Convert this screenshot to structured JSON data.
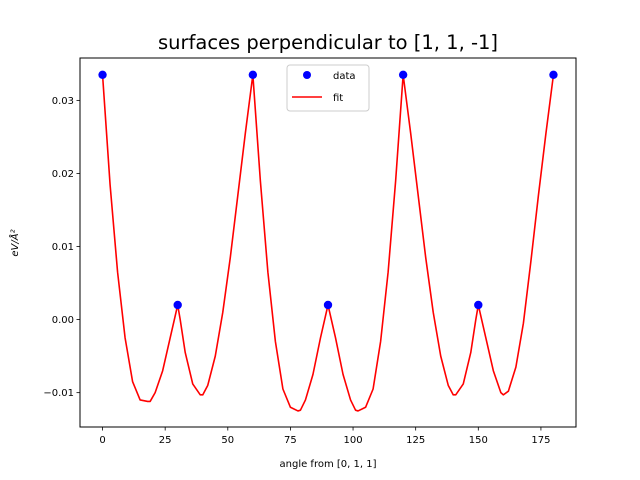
{
  "chart_data": {
    "type": "scatter",
    "title": "surfaces perpendicular to [1, 1, -1]",
    "xlabel": "angle from [0, 1, 1]",
    "ylabel": "eV/Å²",
    "xlim": [
      -9,
      189
    ],
    "ylim": [
      -0.0147,
      0.0358
    ],
    "x_ticks": [
      0,
      25,
      50,
      75,
      100,
      125,
      150,
      175
    ],
    "x_tick_labels": [
      "0",
      "25",
      "50",
      "75",
      "100",
      "125",
      "150",
      "175"
    ],
    "y_ticks": [
      -0.01,
      0.0,
      0.01,
      0.02,
      0.03
    ],
    "y_tick_labels": [
      "−0.01",
      "0.00",
      "0.01",
      "0.02",
      "0.03"
    ],
    "grid": false,
    "legend_position": "upper center",
    "series": [
      {
        "name": "data",
        "kind": "markers",
        "color": "#0000ff",
        "x": [
          0,
          30,
          60,
          90,
          120,
          150,
          180
        ],
        "y": [
          0.0335,
          0.002,
          0.0335,
          0.002,
          0.0335,
          0.002,
          0.0335
        ]
      },
      {
        "name": "fit",
        "kind": "line",
        "color": "#ff0000",
        "x": [
          0,
          3,
          6,
          9,
          12,
          15,
          18,
          19,
          21,
          24,
          27,
          29,
          30,
          31,
          33,
          36,
          39,
          40,
          42,
          45,
          48,
          51,
          54,
          57,
          60,
          63,
          66,
          69,
          72,
          75,
          78,
          79,
          81,
          84,
          87,
          89,
          90,
          91,
          93,
          96,
          99,
          101,
          102,
          105,
          108,
          111,
          114,
          117,
          120,
          123,
          126,
          129,
          132,
          135,
          138,
          140,
          141,
          144,
          147,
          149,
          150,
          151,
          153,
          156,
          159,
          160,
          162,
          165,
          168,
          171,
          174,
          177,
          180
        ],
        "y": [
          0.0335,
          0.0185,
          0.0065,
          -0.0025,
          -0.0085,
          -0.011,
          -0.0112,
          -0.0112,
          -0.01,
          -0.007,
          -0.0025,
          0.0005,
          0.002,
          0.0,
          -0.0045,
          -0.0088,
          -0.0103,
          -0.0103,
          -0.009,
          -0.005,
          0.001,
          0.0085,
          0.017,
          0.0255,
          0.0335,
          0.019,
          0.0065,
          -0.003,
          -0.0095,
          -0.012,
          -0.0125,
          -0.0124,
          -0.011,
          -0.0075,
          -0.0025,
          0.0005,
          0.002,
          0.0005,
          -0.0025,
          -0.0075,
          -0.011,
          -0.0124,
          -0.0125,
          -0.012,
          -0.0095,
          -0.003,
          0.0065,
          0.019,
          0.0335,
          0.0255,
          0.017,
          0.0085,
          0.001,
          -0.005,
          -0.009,
          -0.0103,
          -0.0103,
          -0.0088,
          -0.0045,
          0.0,
          0.002,
          0.0005,
          -0.0025,
          -0.007,
          -0.01,
          -0.0103,
          -0.0098,
          -0.0065,
          -0.0005,
          0.008,
          0.017,
          0.0255,
          0.0335
        ]
      }
    ]
  }
}
